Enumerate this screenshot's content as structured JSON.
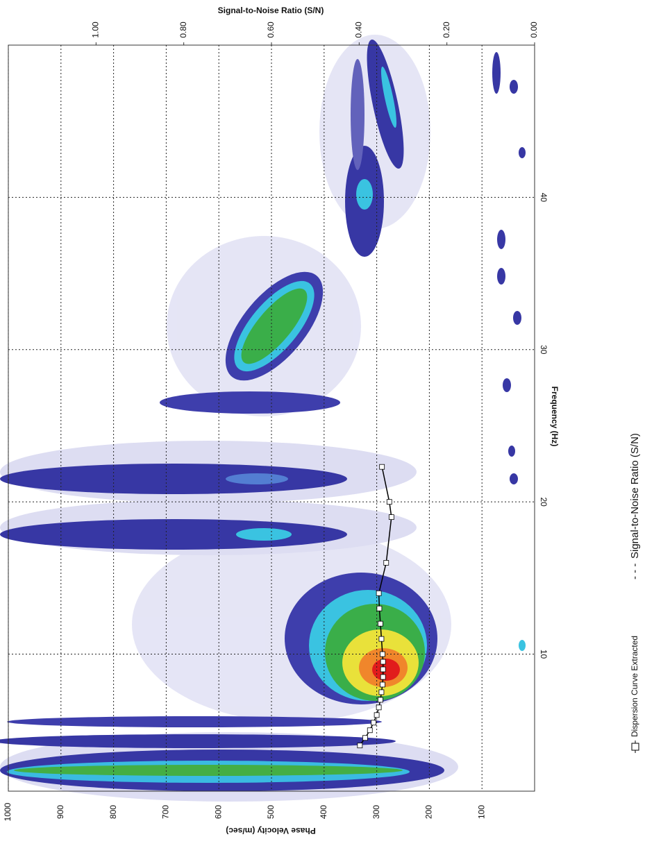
{
  "chart_data": {
    "type": "line",
    "title": "Signal-to-Noise Ratio (S/N)",
    "x_label": "Frequency (Hz)",
    "y_label": "Phase Velocity (m/sec)",
    "xlim": [
      1,
      50
    ],
    "xticks": [
      10,
      20,
      30,
      40
    ],
    "ylim": [
      0,
      1000
    ],
    "yticks": [
      100,
      200,
      300,
      400,
      500,
      600,
      700,
      800,
      900,
      1000
    ],
    "y2lim": [
      0,
      1.2
    ],
    "y2ticks": [
      {
        "value": 0,
        "label": "0.00"
      },
      {
        "value": 0.2,
        "label": "0.20"
      },
      {
        "value": 0.4,
        "label": "0.40"
      },
      {
        "value": 0.6,
        "label": "0.60"
      },
      {
        "value": 0.8,
        "label": "0.80"
      },
      {
        "value": 1,
        "label": "1.00"
      }
    ],
    "grid": true,
    "x": [
      4,
      4.5,
      5,
      5.5,
      6,
      6.5,
      7,
      7.5,
      8,
      8.5,
      9,
      9.5,
      10,
      11,
      12,
      13,
      14,
      16,
      19,
      20,
      22.3
    ],
    "series": [
      {
        "name": "Dispersion Curve Extracted",
        "color": "#000000",
        "values": [
          332,
          322,
          313,
          306,
          300,
          296,
          293,
          291,
          289,
          288,
          288,
          288,
          289,
          291,
          293,
          295,
          296,
          282,
          272,
          276,
          290
        ]
      }
    ],
    "legend_extra": "Signal-to-Noise Ratio (S/N)"
  }
}
